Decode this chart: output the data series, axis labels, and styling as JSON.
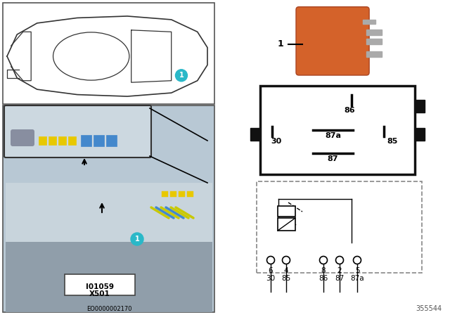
{
  "bg_color": "#ffffff",
  "teal_color": "#2ab8c8",
  "relay_orange": "#d4622a",
  "relay_border": "#aa4422",
  "pin_silver": "#a0a0a0",
  "box_gray": "#444444",
  "car_box_bg": "#ffffff",
  "photo_bg": "#b8c8d4",
  "inset_bg": "#c8d8e0",
  "photo_inner_bg": "#c0ccd8",
  "label_io": "I01059",
  "label_x": "X501",
  "label_eo": "EO0000002170",
  "label_ref": "355544",
  "schematic_pin_nums": [
    "6",
    "4",
    "8",
    "2",
    "5"
  ],
  "schematic_pin_labels": [
    "30",
    "85",
    "86",
    "87",
    "87a"
  ]
}
